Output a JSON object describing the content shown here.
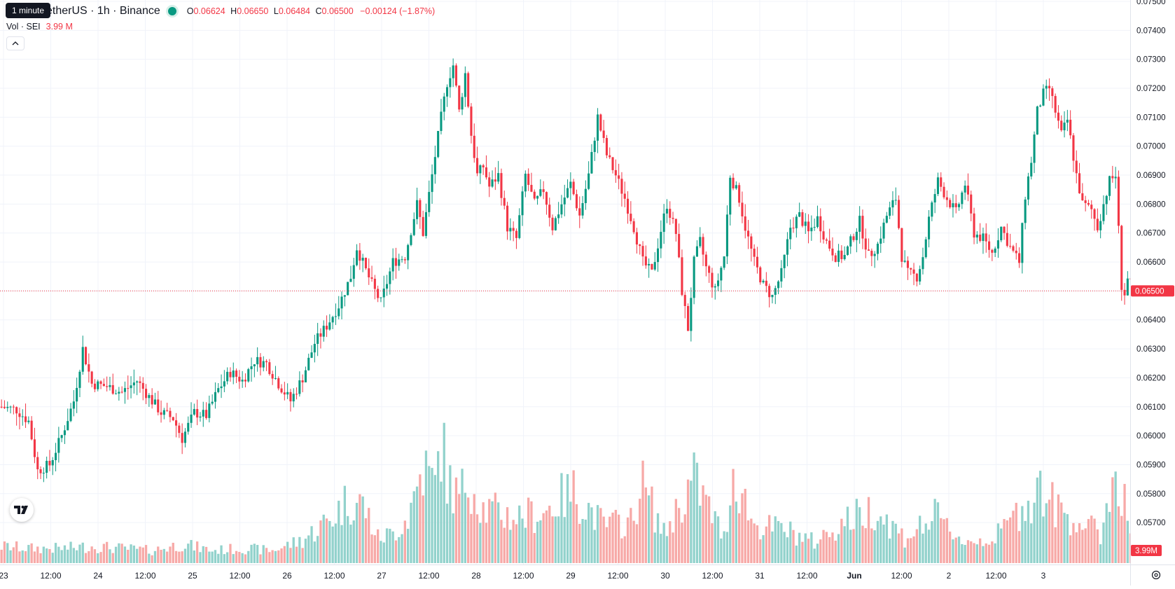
{
  "legend": {
    "symbol": "etherUS · 1h · Binance",
    "open_key": "O",
    "open": "0.06624",
    "high_key": "H",
    "high": "0.06650",
    "low_key": "L",
    "low": "0.06484",
    "close_key": "C",
    "close": "0.06500",
    "change": "−0.00124 (−1.87%)",
    "tooltip": "1 minute"
  },
  "volume_legend": {
    "label": "Vol · SEI",
    "value": "3.99 M"
  },
  "colors": {
    "up": "#089981",
    "down": "#f23645",
    "up_vol": "#92d2cc",
    "down_vol": "#f7a9a7",
    "grid": "#f0f3fa"
  },
  "chart_data": {
    "type": "candlestick",
    "interval": "1h",
    "y_ticks": [
      "0.05700",
      "0.05800",
      "0.05900",
      "0.06000",
      "0.06100",
      "0.06200",
      "0.06300",
      "0.06400",
      "0.06500",
      "0.06600",
      "0.06700",
      "0.06800",
      "0.06900",
      "0.07000",
      "0.07100",
      "0.07200",
      "0.07300",
      "0.07400",
      "0.07500"
    ],
    "ylim": [
      0.0571,
      0.075
    ],
    "x_ticks": [
      "23",
      "12:00",
      "24",
      "12:00",
      "25",
      "12:00",
      "26",
      "12:00",
      "27",
      "12:00",
      "28",
      "12:00",
      "29",
      "12:00",
      "30",
      "12:00",
      "31",
      "12:00",
      "Jun",
      "12:00",
      "2",
      "12:00",
      "3"
    ],
    "last_price": "0.06500",
    "last_volume": "3.99 M",
    "close_path": [
      [
        0,
        0.061
      ],
      [
        5,
        0.0609
      ],
      [
        9,
        0.0605
      ],
      [
        12,
        0.0588
      ],
      [
        16,
        0.059
      ],
      [
        20,
        0.06
      ],
      [
        24,
        0.0612
      ],
      [
        27,
        0.063
      ],
      [
        30,
        0.0618
      ],
      [
        35,
        0.0617
      ],
      [
        40,
        0.0615
      ],
      [
        45,
        0.0619
      ],
      [
        50,
        0.0612
      ],
      [
        53,
        0.0608
      ],
      [
        57,
        0.0606
      ],
      [
        60,
        0.0599
      ],
      [
        64,
        0.0608
      ],
      [
        68,
        0.0607
      ],
      [
        72,
        0.0616
      ],
      [
        76,
        0.0622
      ],
      [
        80,
        0.0619
      ],
      [
        84,
        0.0626
      ],
      [
        88,
        0.0625
      ],
      [
        92,
        0.0618
      ],
      [
        96,
        0.0612
      ],
      [
        100,
        0.062
      ],
      [
        104,
        0.0632
      ],
      [
        108,
        0.0638
      ],
      [
        112,
        0.0645
      ],
      [
        116,
        0.0655
      ],
      [
        118,
        0.0665
      ],
      [
        121,
        0.0657
      ],
      [
        124,
        0.065
      ],
      [
        126,
        0.0646
      ],
      [
        130,
        0.066
      ],
      [
        134,
        0.0662
      ],
      [
        138,
        0.068
      ],
      [
        140,
        0.067
      ],
      [
        143,
        0.069
      ],
      [
        146,
        0.071
      ],
      [
        148,
        0.0722
      ],
      [
        150,
        0.0728
      ],
      [
        152,
        0.0712
      ],
      [
        154,
        0.0725
      ],
      [
        156,
        0.0704
      ],
      [
        158,
        0.069
      ],
      [
        160,
        0.0693
      ],
      [
        162,
        0.0686
      ],
      [
        165,
        0.069
      ],
      [
        168,
        0.0672
      ],
      [
        171,
        0.0668
      ],
      [
        174,
        0.069
      ],
      [
        177,
        0.068
      ],
      [
        180,
        0.0685
      ],
      [
        183,
        0.0672
      ],
      [
        186,
        0.068
      ],
      [
        189,
        0.0687
      ],
      [
        192,
        0.0676
      ],
      [
        195,
        0.069
      ],
      [
        198,
        0.071
      ],
      [
        201,
        0.0697
      ],
      [
        204,
        0.069
      ],
      [
        207,
        0.0682
      ],
      [
        210,
        0.0672
      ],
      [
        213,
        0.066
      ],
      [
        216,
        0.0656
      ],
      [
        219,
        0.0671
      ],
      [
        221,
        0.068
      ],
      [
        224,
        0.067
      ],
      [
        226,
        0.065
      ],
      [
        228,
        0.0637
      ],
      [
        230,
        0.066
      ],
      [
        232,
        0.0667
      ],
      [
        234,
        0.0658
      ],
      [
        237,
        0.065
      ],
      [
        240,
        0.0662
      ],
      [
        242,
        0.069
      ],
      [
        245,
        0.0682
      ],
      [
        247,
        0.0672
      ],
      [
        250,
        0.066
      ],
      [
        253,
        0.0652
      ],
      [
        256,
        0.0648
      ],
      [
        259,
        0.0656
      ],
      [
        262,
        0.0672
      ],
      [
        265,
        0.0676
      ],
      [
        268,
        0.067
      ],
      [
        271,
        0.0675
      ],
      [
        274,
        0.0667
      ],
      [
        277,
        0.0662
      ],
      [
        280,
        0.0662
      ],
      [
        282,
        0.0667
      ],
      [
        285,
        0.0674
      ],
      [
        288,
        0.0662
      ],
      [
        291,
        0.0666
      ],
      [
        294,
        0.0676
      ],
      [
        297,
        0.0682
      ],
      [
        299,
        0.0662
      ],
      [
        301,
        0.0656
      ],
      [
        304,
        0.0655
      ],
      [
        306,
        0.0662
      ],
      [
        308,
        0.0675
      ],
      [
        311,
        0.0688
      ],
      [
        314,
        0.0682
      ],
      [
        317,
        0.0677
      ],
      [
        320,
        0.0687
      ],
      [
        323,
        0.067
      ],
      [
        326,
        0.0668
      ],
      [
        329,
        0.0663
      ],
      [
        332,
        0.0672
      ],
      [
        335,
        0.0665
      ],
      [
        338,
        0.066
      ],
      [
        340,
        0.0683
      ],
      [
        342,
        0.0695
      ],
      [
        344,
        0.0712
      ],
      [
        346,
        0.0718
      ],
      [
        348,
        0.072
      ],
      [
        350,
        0.0712
      ],
      [
        352,
        0.0704
      ],
      [
        354,
        0.0709
      ],
      [
        357,
        0.069
      ],
      [
        359,
        0.068
      ],
      [
        362,
        0.0678
      ],
      [
        364,
        0.0672
      ],
      [
        366,
        0.068
      ],
      [
        368,
        0.0688
      ],
      [
        370,
        0.069
      ],
      [
        372,
        0.0652
      ],
      [
        373,
        0.0649
      ],
      [
        374,
        0.0654
      ],
      [
        376,
        0.065
      ]
    ],
    "volume_path": [
      [
        0,
        0.08
      ],
      [
        10,
        0.07
      ],
      [
        20,
        0.07
      ],
      [
        30,
        0.08
      ],
      [
        40,
        0.07
      ],
      [
        50,
        0.06
      ],
      [
        60,
        0.09
      ],
      [
        70,
        0.06
      ],
      [
        80,
        0.07
      ],
      [
        90,
        0.06
      ],
      [
        100,
        0.11
      ],
      [
        110,
        0.22
      ],
      [
        115,
        0.3
      ],
      [
        120,
        0.28
      ],
      [
        125,
        0.12
      ],
      [
        130,
        0.14
      ],
      [
        135,
        0.22
      ],
      [
        140,
        0.46
      ],
      [
        144,
        0.36
      ],
      [
        146,
        0.6
      ],
      [
        148,
        0.4
      ],
      [
        152,
        0.3
      ],
      [
        155,
        0.42
      ],
      [
        160,
        0.26
      ],
      [
        170,
        0.22
      ],
      [
        180,
        0.24
      ],
      [
        185,
        0.3
      ],
      [
        190,
        0.34
      ],
      [
        200,
        0.18
      ],
      [
        210,
        0.2
      ],
      [
        212,
        0.4
      ],
      [
        220,
        0.14
      ],
      [
        230,
        0.4
      ],
      [
        240,
        0.12
      ],
      [
        243,
        0.44
      ],
      [
        250,
        0.18
      ],
      [
        260,
        0.16
      ],
      [
        270,
        0.1
      ],
      [
        280,
        0.2
      ],
      [
        290,
        0.26
      ],
      [
        300,
        0.12
      ],
      [
        310,
        0.22
      ],
      [
        320,
        0.1
      ],
      [
        330,
        0.12
      ],
      [
        340,
        0.28
      ],
      [
        345,
        0.36
      ],
      [
        350,
        0.26
      ],
      [
        360,
        0.18
      ],
      [
        365,
        0.14
      ],
      [
        370,
        0.44
      ],
      [
        372,
        0.36
      ],
      [
        376,
        0.08
      ]
    ]
  }
}
